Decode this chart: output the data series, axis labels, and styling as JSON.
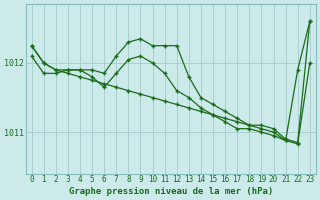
{
  "title": "Graphe pression niveau de la mer (hPa)",
  "bg_color": "#cceaea",
  "plot_bg_color": "#cceaea",
  "grid_color": "#aacece",
  "line_color": "#1a6b1a",
  "marker_color": "#1a6b1a",
  "hours": [
    0,
    1,
    2,
    3,
    4,
    5,
    6,
    7,
    8,
    9,
    10,
    11,
    12,
    13,
    14,
    15,
    16,
    17,
    18,
    19,
    20,
    21,
    22,
    23
  ],
  "series1": [
    1012.25,
    1012.0,
    1011.9,
    1011.85,
    1011.8,
    1011.75,
    1011.7,
    1011.65,
    1011.6,
    1011.55,
    1011.5,
    1011.45,
    1011.4,
    1011.35,
    1011.3,
    1011.25,
    1011.2,
    1011.15,
    1011.1,
    1011.1,
    1011.05,
    1010.9,
    1010.85,
    1012.6
  ],
  "series2": [
    1012.1,
    1011.85,
    1011.85,
    1011.9,
    1011.9,
    1011.8,
    1011.65,
    1011.85,
    1012.05,
    1012.1,
    1012.0,
    1011.85,
    1011.6,
    1011.5,
    1011.35,
    1011.25,
    1011.15,
    1011.05,
    1011.05,
    1011.0,
    1010.95,
    1010.88,
    1010.83,
    1012.0
  ],
  "series3": [
    1012.25,
    1012.0,
    1011.9,
    1011.9,
    1011.9,
    1011.9,
    1011.85,
    1012.1,
    1012.3,
    1012.35,
    1012.25,
    1012.25,
    1012.25,
    1011.8,
    1011.5,
    1011.4,
    1011.3,
    1011.2,
    1011.1,
    1011.05,
    1011.0,
    1010.88,
    1011.9,
    1012.6
  ],
  "ylim_min": 1010.4,
  "ylim_max": 1012.85,
  "ytick_vals": [
    1011.0,
    1012.0
  ],
  "ytick_labels": [
    "1011",
    "1012"
  ],
  "xlabel_color": "#1a6b1a",
  "title_color": "#1a6b1a",
  "title_fontsize": 6.5,
  "tick_fontsize": 5.5
}
